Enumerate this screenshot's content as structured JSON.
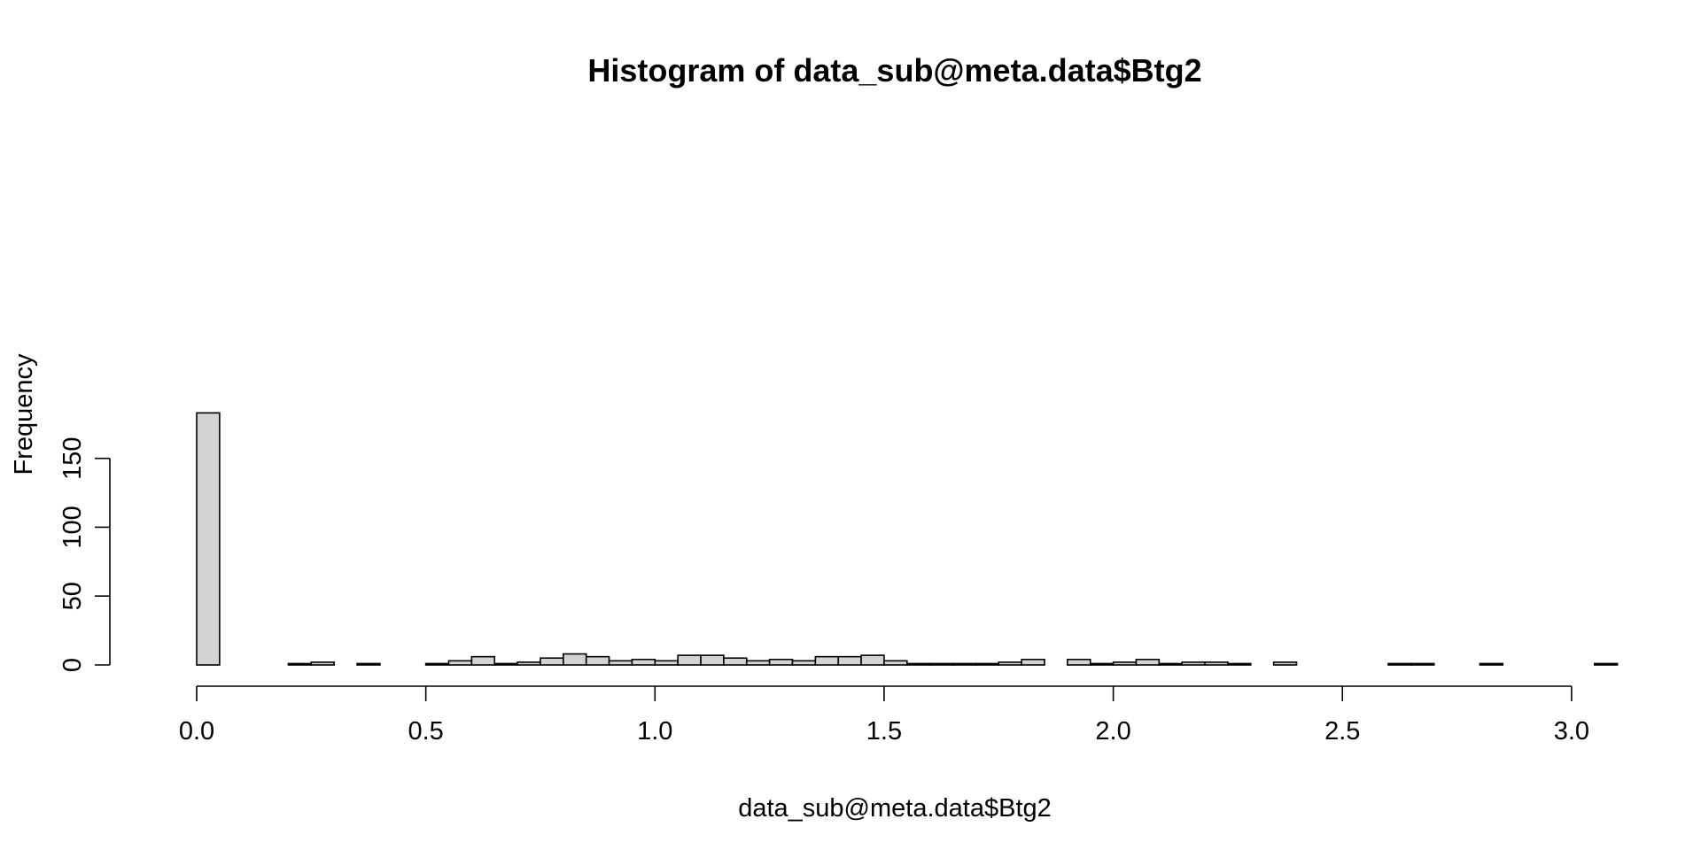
{
  "chart_data": {
    "type": "bar",
    "title": "Histogram of data_sub@meta.data$Btg2",
    "xlabel": "data_sub@meta.data$Btg2",
    "ylabel": "Frequency",
    "bin_width": 0.05,
    "x_start": 0.0,
    "xlim": [
      0,
      3.05
    ],
    "ylim": [
      0,
      183
    ],
    "x_ticks": [
      "0.0",
      "0.5",
      "1.0",
      "1.5",
      "2.0",
      "2.5",
      "3.0"
    ],
    "y_ticks": [
      "0",
      "50",
      "100",
      "150"
    ],
    "values": [
      183,
      0,
      0,
      0,
      1,
      2,
      0,
      1,
      0,
      0,
      1,
      3,
      6,
      1,
      2,
      5,
      8,
      6,
      3,
      4,
      3,
      7,
      7,
      5,
      3,
      4,
      3,
      6,
      6,
      7,
      3,
      1,
      1,
      1,
      1,
      2,
      4,
      0,
      4,
      1,
      2,
      4,
      1,
      2,
      2,
      1,
      0,
      2,
      0,
      0,
      0,
      0,
      1,
      1,
      0,
      0,
      1,
      0,
      0,
      0,
      0,
      1
    ],
    "bar_fill": "#d3d3d3",
    "bar_stroke": "#000000",
    "grid": false,
    "legend": "none"
  }
}
